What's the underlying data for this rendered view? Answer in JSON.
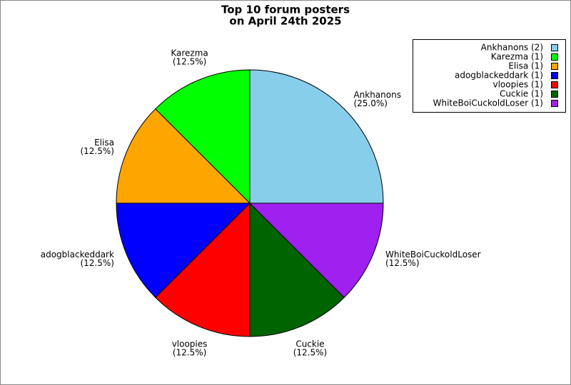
{
  "chart_data": {
    "type": "pie",
    "title": [
      "Top 10 forum posters",
      "on April 24th 2025"
    ],
    "categories": [
      "Ankhanons",
      "Karezma",
      "Elisa",
      "adogblackeddark",
      "vloopies",
      "Cuckie",
      "WhiteBoiCuckoldLoser"
    ],
    "values": [
      25.0,
      12.5,
      12.5,
      12.5,
      12.5,
      12.5,
      12.5
    ],
    "value_labels": [
      "(25.0%)",
      "(12.5%)",
      "(12.5%)",
      "(12.5%)",
      "(12.5%)",
      "(12.5%)",
      "(12.5%)"
    ],
    "legend_labels": [
      "Ankhanons (2)",
      "Karezma (1)",
      "Elisa (1)",
      "adogblackeddark (1)",
      "vloopies (1)",
      "Cuckie (1)",
      "WhiteBoiCuckoldLoser (1)"
    ],
    "colors": [
      "#87ceeb",
      "#00ff00",
      "#ffa500",
      "#0000ff",
      "#ff0000",
      "#006400",
      "#a020f0"
    ],
    "legend": "upper right"
  }
}
